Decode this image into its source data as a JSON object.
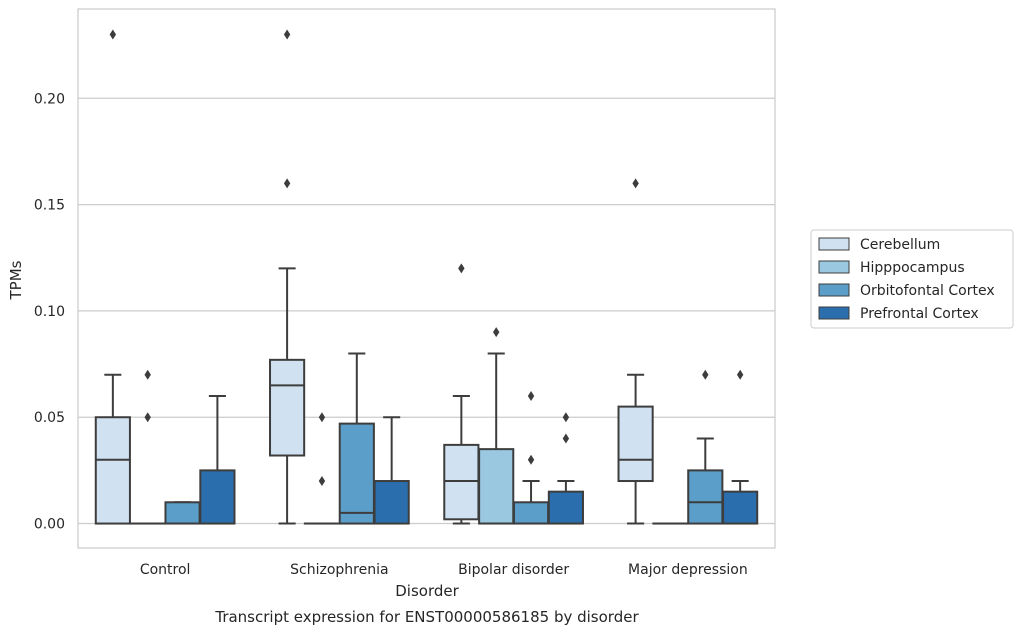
{
  "chart_data": {
    "type": "box",
    "xlabel": "Disorder",
    "ylabel": "TPMs",
    "caption": "Transcript expression for ENST00000586185 by disorder",
    "ylim": [
      -0.0115,
      0.242
    ],
    "yticks": [
      "0.00",
      "0.05",
      "0.10",
      "0.15",
      "0.20"
    ],
    "yticks_values": [
      0,
      0.05,
      0.1,
      0.15,
      0.2
    ],
    "grid": "horizontal",
    "legend_position": "right",
    "categories": [
      "Control",
      "Schizophrenia",
      "Bipolar disorder",
      "Major depression"
    ],
    "series": [
      {
        "name": "Cerebellum",
        "color": "#d0e1f2",
        "boxes": [
          {
            "q1": 0.0,
            "median": 0.03,
            "q3": 0.05,
            "whislo": 0.0,
            "whishi": 0.07,
            "fliers": [
              0.23
            ]
          },
          {
            "q1": 0.032,
            "median": 0.065,
            "q3": 0.077,
            "whislo": 0.0,
            "whishi": 0.12,
            "fliers": [
              0.16,
              0.23
            ]
          },
          {
            "q1": 0.002,
            "median": 0.02,
            "q3": 0.037,
            "whislo": 0.0,
            "whishi": 0.06,
            "fliers": [
              0.12
            ]
          },
          {
            "q1": 0.02,
            "median": 0.03,
            "q3": 0.055,
            "whislo": 0.0,
            "whishi": 0.07,
            "fliers": [
              0.16
            ]
          }
        ]
      },
      {
        "name": "Hipppocampus",
        "color": "#9ac8e0",
        "boxes": [
          {
            "q1": 0.0,
            "median": 0.0,
            "q3": 0.0,
            "whislo": 0.0,
            "whishi": 0.0,
            "fliers": [
              0.05,
              0.07
            ]
          },
          {
            "q1": 0.0,
            "median": 0.0,
            "q3": 0.0,
            "whislo": 0.0,
            "whishi": 0.0,
            "fliers": [
              0.02,
              0.05
            ]
          },
          {
            "q1": 0.0,
            "median": 0.0,
            "q3": 0.035,
            "whislo": 0.0,
            "whishi": 0.08,
            "fliers": [
              0.09
            ]
          },
          {
            "q1": 0.0,
            "median": 0.0,
            "q3": 0.0,
            "whislo": 0.0,
            "whishi": 0.0,
            "fliers": []
          }
        ]
      },
      {
        "name": "Orbitofontal Cortex",
        "color": "#5b9ec9",
        "boxes": [
          {
            "q1": 0.0,
            "median": 0.0,
            "q3": 0.01,
            "whislo": 0.0,
            "whishi": 0.01,
            "fliers": []
          },
          {
            "q1": 0.0,
            "median": 0.005,
            "q3": 0.047,
            "whislo": 0.0,
            "whishi": 0.08,
            "fliers": []
          },
          {
            "q1": 0.0,
            "median": 0.0,
            "q3": 0.01,
            "whislo": 0.0,
            "whishi": 0.02,
            "fliers": [
              0.03,
              0.06
            ]
          },
          {
            "q1": 0.0,
            "median": 0.01,
            "q3": 0.025,
            "whislo": 0.0,
            "whishi": 0.04,
            "fliers": [
              0.07
            ]
          }
        ]
      },
      {
        "name": "Prefrontal Cortex",
        "color": "#2a6ead",
        "boxes": [
          {
            "q1": 0.0,
            "median": 0.0,
            "q3": 0.025,
            "whislo": 0.0,
            "whishi": 0.06,
            "fliers": []
          },
          {
            "q1": 0.0,
            "median": 0.0,
            "q3": 0.02,
            "whislo": 0.0,
            "whishi": 0.05,
            "fliers": []
          },
          {
            "q1": 0.0,
            "median": 0.0,
            "q3": 0.015,
            "whislo": 0.0,
            "whishi": 0.02,
            "fliers": [
              0.04,
              0.05
            ]
          },
          {
            "q1": 0.0,
            "median": 0.0,
            "q3": 0.015,
            "whislo": 0.0,
            "whishi": 0.02,
            "fliers": [
              0.07
            ]
          }
        ]
      }
    ]
  }
}
